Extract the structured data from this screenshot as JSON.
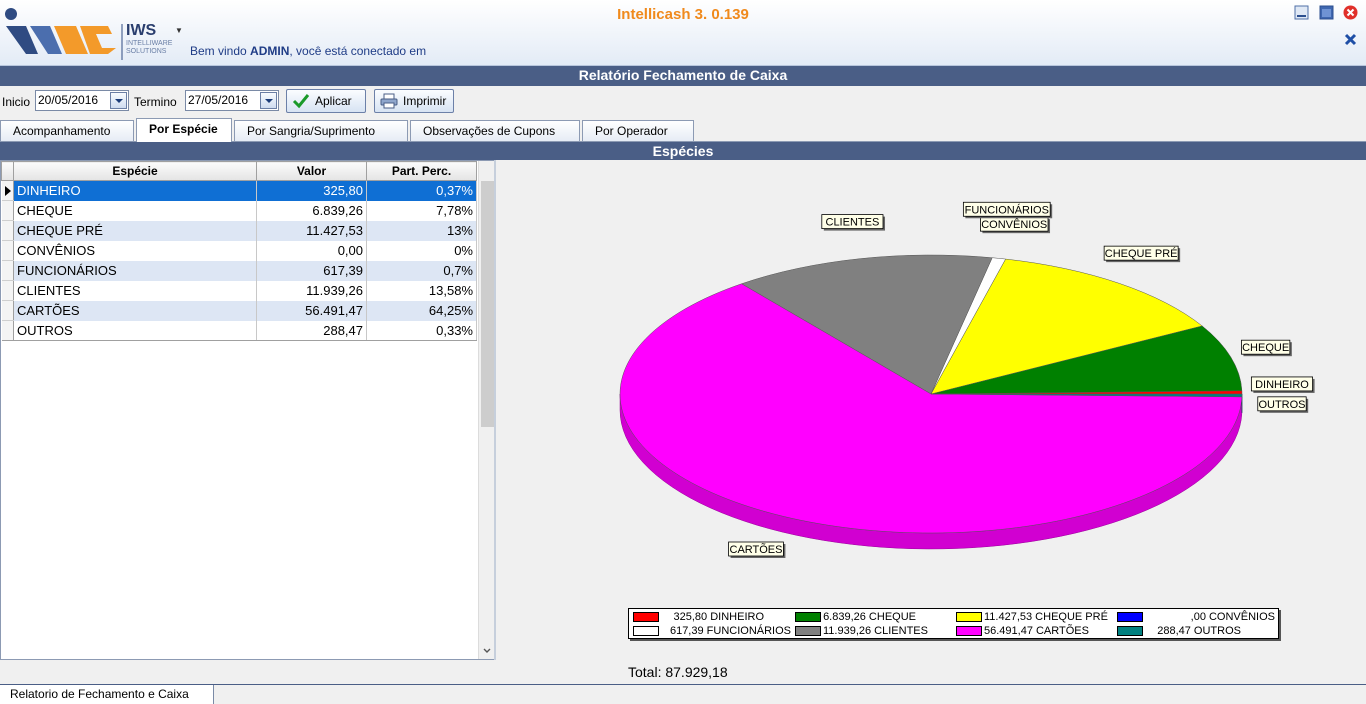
{
  "app": {
    "title": "Intellicash 3. 0.139",
    "logo_text": "IWS",
    "logo_sub": "INTELLIWARE SOLUTIONS",
    "welcome_prefix": "Bem vindo ",
    "welcome_user": "ADMIN",
    "welcome_suffix": ", você está conectado em"
  },
  "report": {
    "title": "Relatório Fechamento de Caixa"
  },
  "filters": {
    "inicio_label": "Inicio",
    "inicio_value": "20/05/2016",
    "termino_label": "Termino",
    "termino_value": "27/05/2016",
    "apply_label": "Aplicar",
    "print_label": "Imprimir"
  },
  "tabs": [
    {
      "label": "Acompanhamento"
    },
    {
      "label": "Por Espécie"
    },
    {
      "label": "Por Sangria/Suprimento"
    },
    {
      "label": "Observações de Cupons"
    },
    {
      "label": "Por Operador"
    }
  ],
  "panel": {
    "title": "Espécies"
  },
  "grid": {
    "headers": [
      "Espécie",
      "Valor",
      "Part. Perc."
    ],
    "rows": [
      {
        "especie": "DINHEIRO",
        "valor": "325,80",
        "perc": "0,37%"
      },
      {
        "especie": "CHEQUE",
        "valor": "6.839,26",
        "perc": "7,78%"
      },
      {
        "especie": "CHEQUE PRÉ",
        "valor": "11.427,53",
        "perc": "13%"
      },
      {
        "especie": "CONVÊNIOS",
        "valor": "0,00",
        "perc": "0%"
      },
      {
        "especie": "FUNCIONÁRIOS",
        "valor": "617,39",
        "perc": "0,7%"
      },
      {
        "especie": "CLIENTES",
        "valor": "11.939,26",
        "perc": "13,58%"
      },
      {
        "especie": "CARTÕES",
        "valor": "56.491,47",
        "perc": "64,25%"
      },
      {
        "especie": "OUTROS",
        "valor": "288,47",
        "perc": "0,33%"
      }
    ]
  },
  "chart_data": {
    "type": "pie",
    "title": "",
    "categories": [
      "DINHEIRO",
      "CHEQUE",
      "CHEQUE PRÉ",
      "CONVÊNIOS",
      "FUNCIONÁRIOS",
      "CLIENTES",
      "CARTÕES",
      "OUTROS"
    ],
    "values": [
      325.8,
      6839.26,
      11427.53,
      0.0,
      617.39,
      11939.26,
      56491.47,
      288.47
    ],
    "colors": [
      "#ff0000",
      "#008000",
      "#ffff00",
      "#0000ff",
      "#ffffff",
      "#808080",
      "#ff00ff",
      "#008080"
    ],
    "legend_entries": [
      "325,80 DINHEIRO",
      "6.839,26 CHEQUE",
      "11.427,53 CHEQUE PRÉ",
      ",00 CONVÊNIOS",
      "617,39 FUNCIONÁRIOS",
      "11.939,26 CLIENTES",
      "56.491,47 CARTÕES",
      "288,47 OUTROS"
    ],
    "legend_position": "bottom",
    "total_label": "Total: 87.929,18"
  },
  "footer": {
    "doc_tab": "Relatorio de Fechamento e Caixa"
  }
}
